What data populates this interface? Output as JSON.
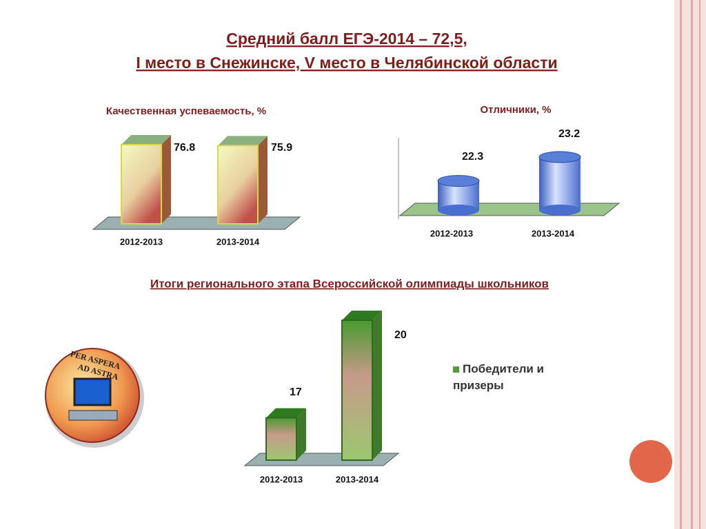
{
  "title_lines": [
    "Средний балл ЕГЭ-2014 – 72,5,",
    "I место в Снежинске, V место в Челябинской области"
  ],
  "logo_text": [
    "PER ASPERA",
    "AD ASTRA"
  ],
  "chart_data": [
    {
      "type": "bar",
      "title": "Качественная успеваемость, %",
      "categories": [
        "2012-2013",
        "2013-2014"
      ],
      "values": [
        76.8,
        75.9
      ],
      "ylim": [
        0,
        90
      ],
      "color": "#f0f7b0"
    },
    {
      "type": "cylinder",
      "title": "Отличники, %",
      "categories": [
        "2012-2013",
        "2013-2014"
      ],
      "values": [
        22.3,
        23.2
      ],
      "ylim": [
        21.2,
        24
      ],
      "color": "#6f8fe0"
    },
    {
      "type": "bar",
      "title": "Итоги регионального этапа Всероссийской олимпиады школьников",
      "categories": [
        "2012-2013",
        "2013-2014"
      ],
      "series": [
        {
          "name": "Победители и призеры",
          "color": "#5a9a3a",
          "values": [
            17,
            20
          ]
        }
      ],
      "ylim": [
        15.7,
        21
      ]
    }
  ]
}
